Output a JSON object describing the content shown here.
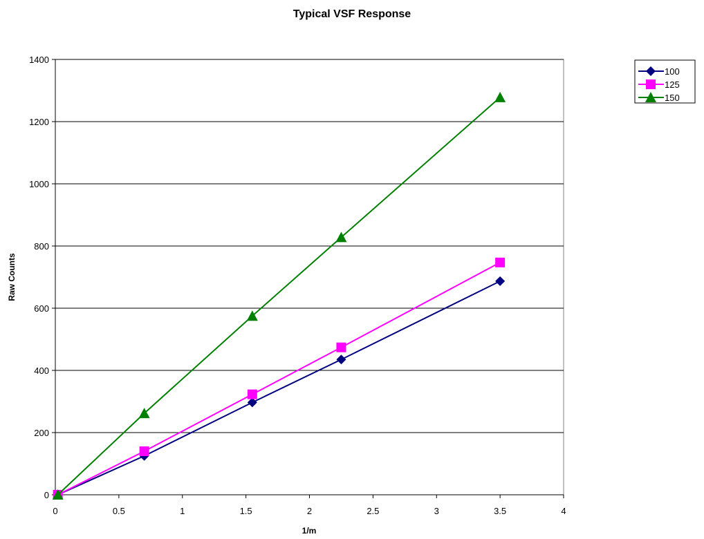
{
  "chart_data": {
    "type": "line",
    "title": "Typical VSF Response",
    "xlabel": "1/m",
    "ylabel": "Raw Counts",
    "xlim": [
      0,
      4
    ],
    "ylim": [
      0,
      1400
    ],
    "xticks": [
      0,
      0.5,
      1,
      1.5,
      2,
      2.5,
      3,
      3.5,
      4
    ],
    "xtick_labels": [
      "0",
      "0.5",
      "1",
      "1.5",
      "2",
      "2.5",
      "3",
      "3.5",
      "4"
    ],
    "yticks": [
      0,
      200,
      400,
      600,
      800,
      1000,
      1200,
      1400
    ],
    "ytick_labels": [
      "0",
      "200",
      "400",
      "600",
      "800",
      "1000",
      "1200",
      "1400"
    ],
    "grid": "horizontal major gridlines",
    "legend_position": "top-right",
    "series": [
      {
        "name": "100",
        "color": "#000080",
        "marker": "diamond",
        "points": [
          [
            0.02,
            0
          ],
          [
            0.7,
            125
          ],
          [
            1.55,
            297
          ],
          [
            2.25,
            435
          ],
          [
            3.5,
            687
          ]
        ]
      },
      {
        "name": "125",
        "color": "#ff00ff",
        "marker": "square",
        "points": [
          [
            0.02,
            0
          ],
          [
            0.7,
            140
          ],
          [
            1.55,
            323
          ],
          [
            2.25,
            474
          ],
          [
            3.5,
            747
          ]
        ]
      },
      {
        "name": "150",
        "color": "#008000",
        "marker": "triangle",
        "points": [
          [
            0.02,
            0
          ],
          [
            0.7,
            262
          ],
          [
            1.55,
            575
          ],
          [
            2.25,
            828
          ],
          [
            3.5,
            1278
          ]
        ]
      }
    ]
  }
}
